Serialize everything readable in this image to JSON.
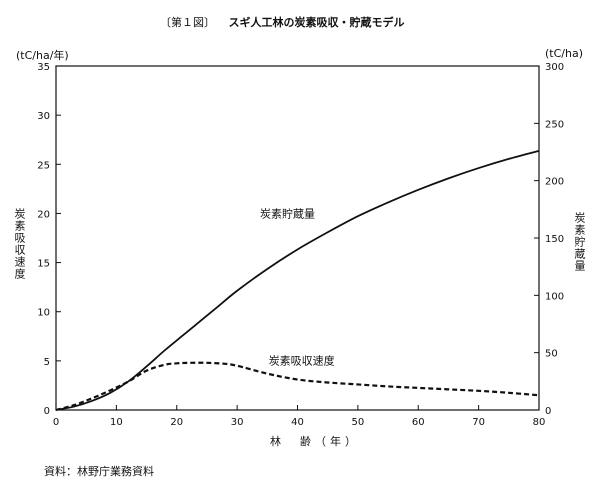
{
  "figure": {
    "number": "〔第１図〕",
    "title": "スギ人工林の炭素吸収・貯蔵モデル",
    "source": "資料：林野庁業務資料"
  },
  "chart_data": {
    "type": "line",
    "title": "スギ人工林の炭素吸収・貯蔵モデル",
    "xlabel": "林　齢（年）",
    "ylabel_left": "炭素吸収速度",
    "ylabel_right": "炭素貯蔵量",
    "unit_left": "(tC/ha/年)",
    "unit_right": "(tC/ha)",
    "xlim": [
      0,
      80
    ],
    "ylim_left": [
      0,
      35
    ],
    "ylim_right": [
      0,
      300
    ],
    "x_ticks": [
      0,
      10,
      20,
      30,
      40,
      50,
      60,
      70,
      80
    ],
    "y_left_ticks": [
      0,
      5,
      10,
      15,
      20,
      25,
      30,
      35
    ],
    "y_right_ticks": [
      0,
      50,
      100,
      150,
      200,
      250,
      300
    ],
    "grid": false,
    "series": [
      {
        "name": "炭素貯蔵量",
        "axis": "right",
        "style": "solid",
        "x": [
          0,
          3,
          6,
          9,
          12,
          15,
          18,
          21,
          24,
          27,
          30,
          35,
          40,
          45,
          50,
          55,
          60,
          65,
          70,
          75,
          80
        ],
        "y": [
          0,
          3,
          8,
          15,
          25,
          38,
          52,
          65,
          78,
          91,
          104,
          123,
          140,
          155,
          169,
          181,
          192,
          202,
          211,
          219,
          226
        ]
      },
      {
        "name": "炭素吸収速度",
        "axis": "left",
        "style": "dashed",
        "x": [
          0,
          3,
          6,
          9,
          12,
          15,
          18,
          20,
          22,
          25,
          28,
          30,
          35,
          40,
          45,
          50,
          55,
          60,
          65,
          70,
          75,
          80
        ],
        "y": [
          0,
          0.5,
          1.2,
          2.0,
          2.9,
          4.0,
          4.6,
          4.75,
          4.8,
          4.8,
          4.7,
          4.5,
          3.7,
          3.1,
          2.8,
          2.6,
          2.4,
          2.25,
          2.1,
          1.95,
          1.75,
          1.5
        ]
      }
    ]
  }
}
